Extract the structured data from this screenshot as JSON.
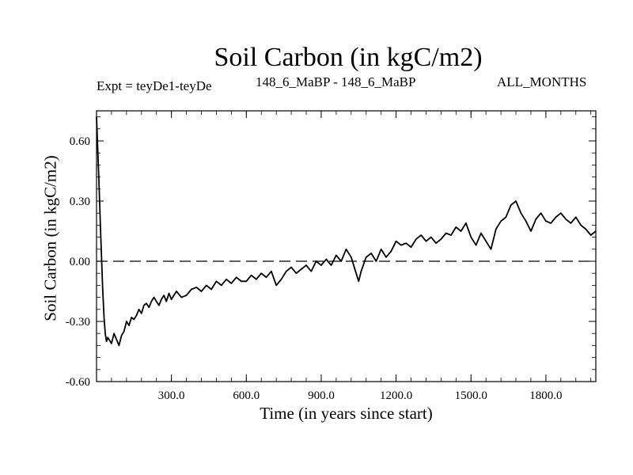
{
  "chart_data": {
    "type": "line",
    "title": "Soil Carbon (in kgC/m2)",
    "subtitle_left": "Expt = teyDe1-teyDe",
    "subtitle_center": "148_6_MaBP - 148_6_MaBP",
    "subtitle_right": "ALL_MONTHS",
    "xlabel": "Time (in years since start)",
    "ylabel": "Soil Carbon (in kgC/m2)",
    "xlim": [
      0,
      2000
    ],
    "ylim": [
      -0.6,
      0.75
    ],
    "xticks": [
      300,
      600,
      900,
      1200,
      1500,
      1800
    ],
    "xtick_labels": [
      "300.0",
      "600.0",
      "900.0",
      "1200.0",
      "1500.0",
      "1800.0"
    ],
    "yticks": [
      -0.6,
      -0.3,
      0.0,
      0.3,
      0.6
    ],
    "ytick_labels": [
      "-0.60",
      "-0.30",
      "0.00",
      "0.30",
      "0.60"
    ],
    "reference_line": {
      "y": 0.0,
      "style": "dashed"
    },
    "series": [
      {
        "name": "Soil Carbon",
        "x": [
          0,
          5,
          10,
          15,
          20,
          25,
          30,
          35,
          40,
          45,
          50,
          60,
          70,
          80,
          90,
          100,
          110,
          120,
          130,
          140,
          150,
          160,
          170,
          180,
          190,
          200,
          210,
          220,
          230,
          240,
          250,
          260,
          270,
          280,
          290,
          300,
          320,
          340,
          360,
          380,
          400,
          420,
          440,
          460,
          480,
          500,
          520,
          540,
          560,
          580,
          600,
          620,
          640,
          660,
          680,
          700,
          720,
          740,
          760,
          780,
          800,
          820,
          840,
          860,
          880,
          900,
          920,
          940,
          960,
          980,
          1000,
          1020,
          1040,
          1050,
          1060,
          1080,
          1100,
          1120,
          1140,
          1160,
          1180,
          1200,
          1220,
          1240,
          1260,
          1280,
          1300,
          1320,
          1340,
          1360,
          1380,
          1400,
          1420,
          1440,
          1460,
          1480,
          1500,
          1520,
          1540,
          1560,
          1580,
          1600,
          1620,
          1640,
          1660,
          1680,
          1700,
          1720,
          1740,
          1760,
          1780,
          1800,
          1820,
          1840,
          1860,
          1880,
          1900,
          1920,
          1940,
          1960,
          1980,
          2000
        ],
        "values": [
          0.72,
          0.55,
          0.38,
          0.2,
          0.02,
          -0.15,
          -0.28,
          -0.36,
          -0.4,
          -0.38,
          -0.39,
          -0.41,
          -0.36,
          -0.39,
          -0.42,
          -0.37,
          -0.35,
          -0.3,
          -0.32,
          -0.28,
          -0.29,
          -0.27,
          -0.24,
          -0.26,
          -0.22,
          -0.21,
          -0.23,
          -0.2,
          -0.18,
          -0.2,
          -0.22,
          -0.19,
          -0.17,
          -0.2,
          -0.16,
          -0.19,
          -0.15,
          -0.18,
          -0.17,
          -0.14,
          -0.13,
          -0.15,
          -0.12,
          -0.14,
          -0.1,
          -0.12,
          -0.09,
          -0.11,
          -0.08,
          -0.1,
          -0.1,
          -0.07,
          -0.09,
          -0.06,
          -0.08,
          -0.05,
          -0.12,
          -0.09,
          -0.05,
          -0.03,
          -0.06,
          -0.04,
          -0.02,
          -0.05,
          0.0,
          -0.02,
          0.01,
          -0.02,
          0.03,
          0.0,
          0.06,
          0.02,
          -0.06,
          -0.1,
          -0.05,
          0.02,
          0.04,
          0.0,
          0.06,
          0.02,
          0.05,
          0.1,
          0.08,
          0.09,
          0.07,
          0.11,
          0.13,
          0.1,
          0.12,
          0.09,
          0.11,
          0.14,
          0.13,
          0.17,
          0.15,
          0.19,
          0.12,
          0.08,
          0.14,
          0.1,
          0.06,
          0.16,
          0.2,
          0.22,
          0.28,
          0.3,
          0.24,
          0.2,
          0.15,
          0.21,
          0.24,
          0.2,
          0.19,
          0.22,
          0.24,
          0.21,
          0.19,
          0.22,
          0.18,
          0.16,
          0.13,
          0.15
        ]
      }
    ]
  }
}
